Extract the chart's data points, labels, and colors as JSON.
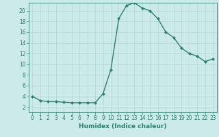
{
  "x": [
    0,
    1,
    2,
    3,
    4,
    5,
    6,
    7,
    8,
    9,
    10,
    11,
    12,
    13,
    14,
    15,
    16,
    17,
    18,
    19,
    20,
    21,
    22,
    23
  ],
  "y": [
    4,
    3.2,
    3,
    3,
    2.9,
    2.8,
    2.8,
    2.8,
    2.8,
    4.5,
    9,
    18.5,
    21,
    21.5,
    20.5,
    20,
    18.5,
    16,
    15,
    13,
    12,
    11.5,
    10.5,
    11
  ],
  "line_color": "#2d7d6f",
  "marker": "D",
  "marker_size": 2.2,
  "bg_color": "#cceae7",
  "grid_color": "#b0d8d4",
  "xlabel": "Humidex (Indice chaleur)",
  "xlim": [
    -0.5,
    23.5
  ],
  "ylim": [
    1,
    21.5
  ],
  "yticks": [
    2,
    4,
    6,
    8,
    10,
    12,
    14,
    16,
    18,
    20
  ],
  "xticks": [
    0,
    1,
    2,
    3,
    4,
    5,
    6,
    7,
    8,
    9,
    10,
    11,
    12,
    13,
    14,
    15,
    16,
    17,
    18,
    19,
    20,
    21,
    22,
    23
  ],
  "tick_fontsize": 5.5,
  "xlabel_fontsize": 6.5,
  "axis_color": "#2d7d6f",
  "line_width": 1.0
}
